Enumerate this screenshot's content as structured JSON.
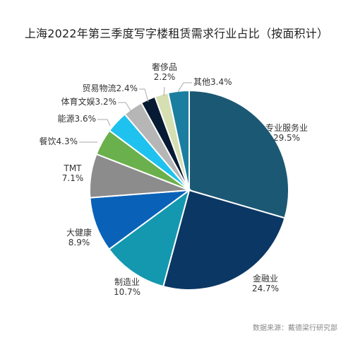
{
  "title": "上海2022年第三季度写字楼租赁需求行业占比（按面积计）",
  "source": "数据来源：戴德梁行研究部",
  "chart_data": {
    "type": "pie",
    "title": "上海2022年第三季度写字楼租赁需求行业占比（按面积计）",
    "slices": [
      {
        "name": "专业服务业",
        "value": 29.5,
        "value_label": "29.5%",
        "color": "#1b5874"
      },
      {
        "name": "金融业",
        "value": 24.7,
        "value_label": "24.7%",
        "color": "#0b3764"
      },
      {
        "name": "制造业",
        "value": 10.7,
        "value_label": "10.7%",
        "color": "#1498b0"
      },
      {
        "name": "大健康",
        "value": 8.9,
        "value_label": "8.9%",
        "color": "#0a62b8"
      },
      {
        "name": "TMT",
        "value": 7.1,
        "value_label": "7.1%",
        "color": "#8c8c8c"
      },
      {
        "name": "餐饮",
        "value": 4.3,
        "value_label": "4.3%",
        "color": "#6ab04c"
      },
      {
        "name": "能源",
        "value": 3.6,
        "value_label": "3.6%",
        "color": "#1fc2ee"
      },
      {
        "name": "体育文娱",
        "value": 3.2,
        "value_label": "3.2%",
        "color": "#b6b6b6"
      },
      {
        "name": "贸易物流",
        "value": 2.4,
        "value_label": "2.4%",
        "color": "#061a33"
      },
      {
        "name": "奢侈品",
        "value": 2.2,
        "value_label": "2.2%",
        "color": "#d5dfb2"
      },
      {
        "name": "其他",
        "value": 3.4,
        "value_label": "3.4%",
        "color": "#1b7ea0"
      }
    ]
  }
}
